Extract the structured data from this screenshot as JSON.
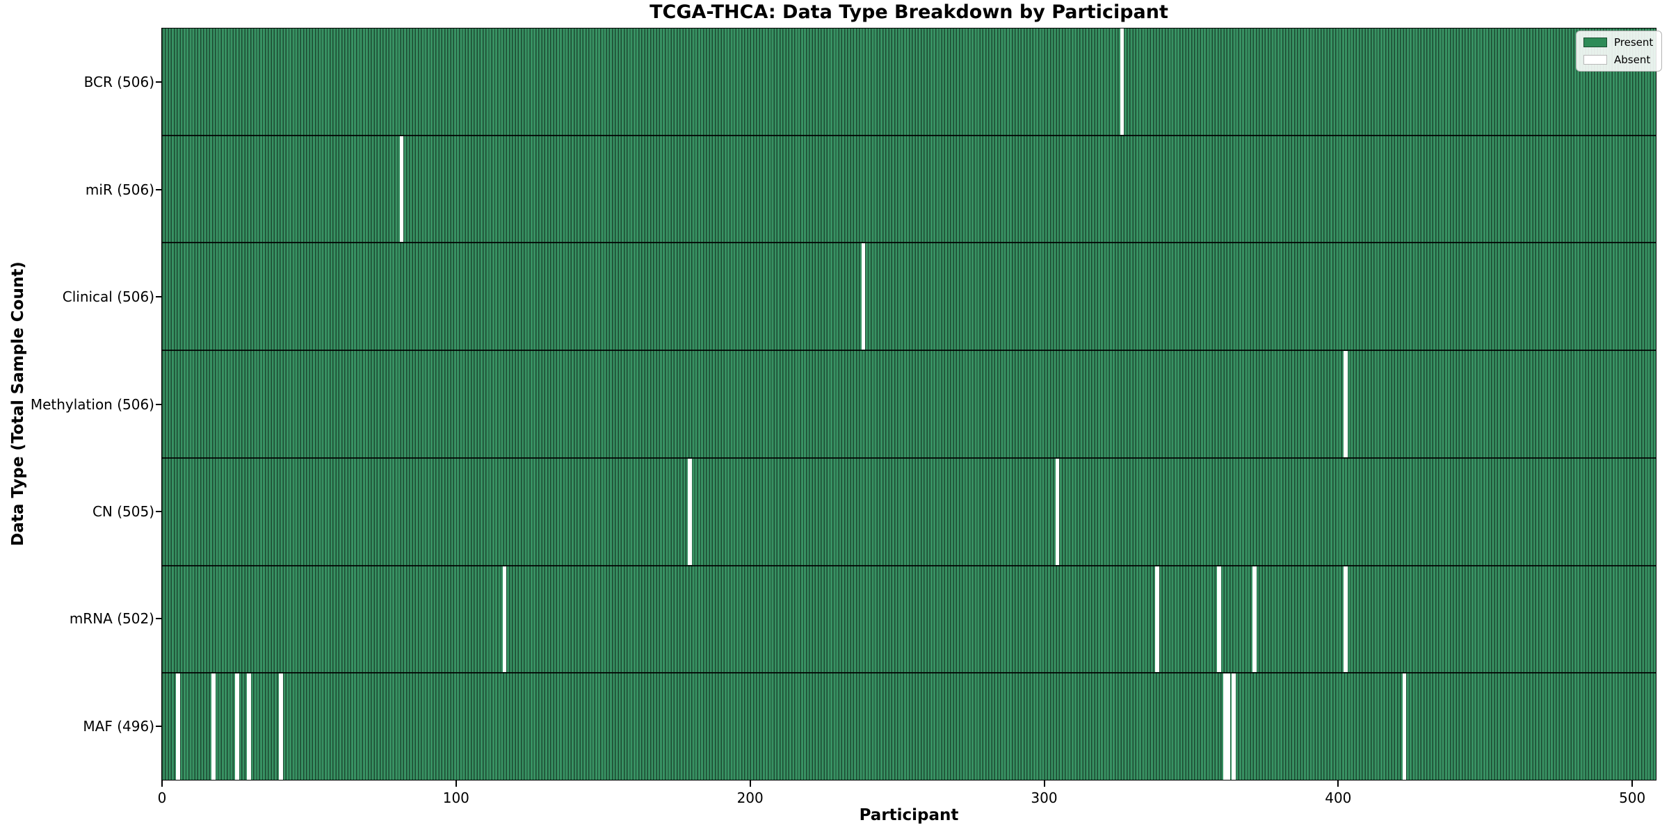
{
  "figure": {
    "title": "TCGA-THCA: Data Type Breakdown by Participant",
    "xlabel": "Participant",
    "ylabel": "Data Type (Total Sample Count)"
  },
  "legend_labels": [
    "Present",
    "Absent"
  ],
  "colors": {
    "present_fill": "#2e8b57",
    "present_bar_edge": "rgba(0,0,0,0.5)",
    "absent_fill": "#ffffff",
    "row_separator": "#1a1a1a",
    "axis_spine": "#000000",
    "legend_border": "#b4b4b4"
  },
  "chart_data": {
    "type": "heatmap",
    "title": "TCGA-THCA: Data Type Breakdown by Participant",
    "xlabel": "Participant",
    "ylabel": "Data Type (Total Sample Count)",
    "legend": [
      "Present",
      "Absent"
    ],
    "legend_position": "upper right",
    "x_ticks": [
      0,
      100,
      200,
      300,
      400,
      500
    ],
    "x_range": [
      0,
      508
    ],
    "n_participants": 508,
    "grid": false,
    "rows": [
      {
        "label": "BCR (506)",
        "data_type": "BCR",
        "sample_count": 506,
        "absent_participants": [
          326
        ]
      },
      {
        "label": "miR (506)",
        "data_type": "miR",
        "sample_count": 506,
        "absent_participants": [
          81
        ]
      },
      {
        "label": "Clinical (506)",
        "data_type": "Clinical",
        "sample_count": 506,
        "absent_participants": [
          238
        ]
      },
      {
        "label": "Methylation (506)",
        "data_type": "Methylation",
        "sample_count": 506,
        "absent_participants": [
          402
        ]
      },
      {
        "label": "CN (505)",
        "data_type": "CN",
        "sample_count": 505,
        "absent_participants": [
          179,
          304
        ]
      },
      {
        "label": "mRNA (502)",
        "data_type": "mRNA",
        "sample_count": 502,
        "absent_participants": [
          116,
          338,
          359,
          371,
          402
        ]
      },
      {
        "label": "MAF (496)",
        "data_type": "MAF",
        "sample_count": 496,
        "absent_participants": [
          5,
          17,
          25,
          29,
          40,
          361,
          362,
          364,
          422
        ]
      }
    ]
  }
}
